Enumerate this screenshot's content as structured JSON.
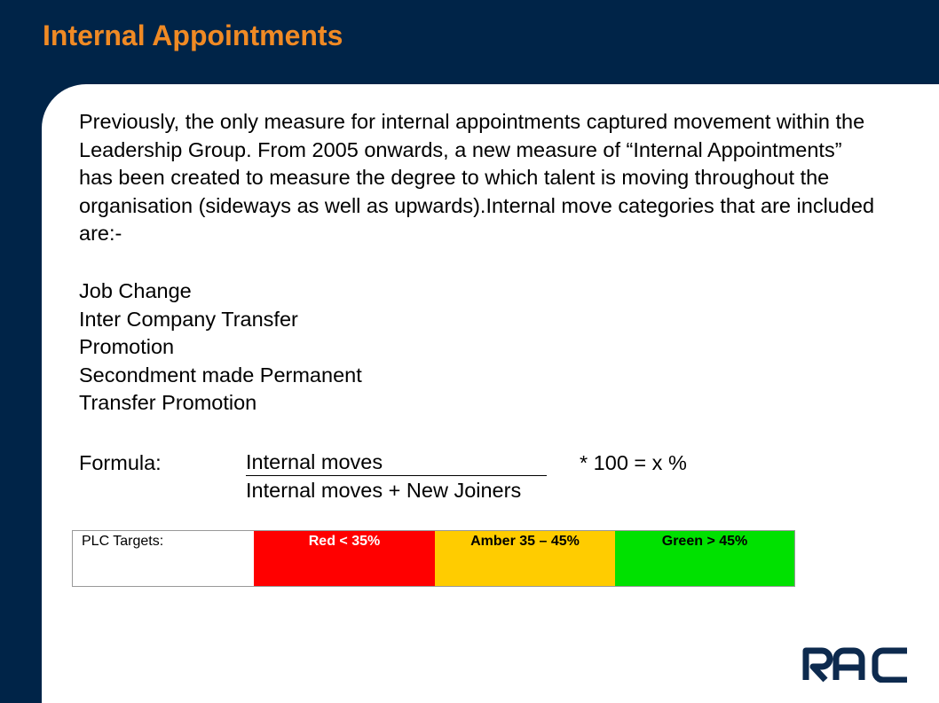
{
  "title": "Internal Appointments",
  "intro": "Previously, the only measure for internal appointments captured movement within the Leadership Group.  From 2005 onwards, a new measure of “Internal Appointments” has been created to measure the degree to which talent is moving throughout the organisation (sideways as well as upwards).Internal move categories that are included are:-",
  "categories": [
    "Job Change",
    "Inter Company Transfer",
    "Promotion",
    "Secondment made Permanent",
    "Transfer Promotion"
  ],
  "formula": {
    "label": "Formula:",
    "numerator": "Internal moves",
    "denominator": "Internal moves + New Joiners",
    "multiplier": "* 100 = x %"
  },
  "targets": {
    "label": "PLC Targets:",
    "red": "Red < 35%",
    "amber": "Amber 35 – 45%",
    "green": "Green > 45%",
    "colors": {
      "red": "#FF0000",
      "amber": "#FFCC00",
      "green": "#00E100"
    }
  },
  "logo": {
    "icon": "rac-logo",
    "text": "RAC"
  },
  "colors": {
    "background": "#002448",
    "title": "#F08A24"
  }
}
